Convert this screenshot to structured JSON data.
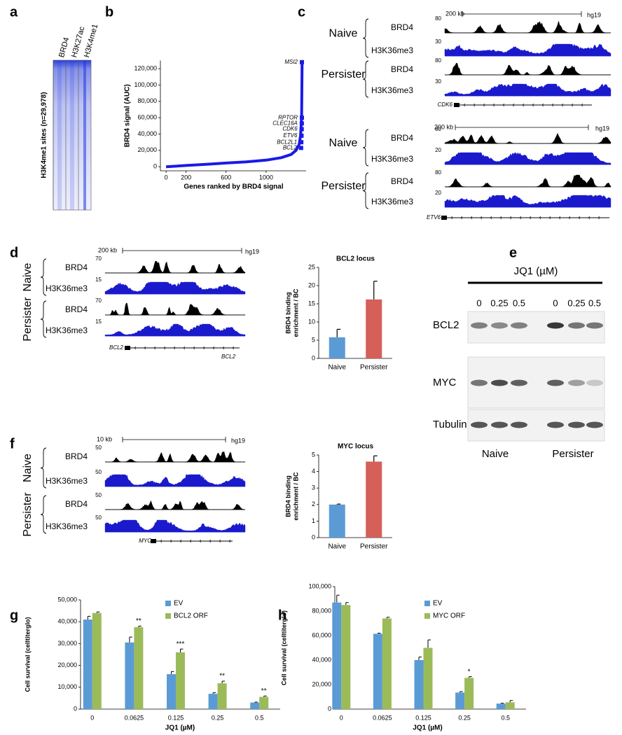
{
  "panel_labels": [
    "a",
    "b",
    "c",
    "d",
    "e",
    "f",
    "g",
    "h"
  ],
  "heatmap": {
    "columns": [
      "BRD4",
      "H3K27ac",
      "H3K4me1"
    ],
    "ylabel": "H3K4me1 sites (n=29,978)",
    "color": "#2236d8"
  },
  "genome_tracks": [
    {
      "scale": "200 kb",
      "genome": "hg19",
      "genes": [
        "CDK6"
      ],
      "groups": [
        {
          "name": "Naive",
          "tracks": [
            {
              "name": "BRD4",
              "max": 80,
              "color": "#000000"
            },
            {
              "name": "H3K36me3",
              "max": 30,
              "color": "#1a1acc"
            }
          ]
        },
        {
          "name": "Persister",
          "tracks": [
            {
              "name": "BRD4",
              "max": 80,
              "color": "#000000"
            },
            {
              "name": "H3K36me3",
              "max": 30,
              "color": "#1a1acc"
            }
          ]
        }
      ]
    },
    {
      "scale": "200 kb",
      "genome": "hg19",
      "genes": [
        "ETV6"
      ],
      "groups": [
        {
          "name": "Naive",
          "tracks": [
            {
              "name": "BRD4",
              "max": 80,
              "color": "#000000"
            },
            {
              "name": "H3K36me3",
              "max": 20,
              "color": "#1a1acc"
            }
          ]
        },
        {
          "name": "Persister",
          "tracks": [
            {
              "name": "BRD4",
              "max": 80,
              "color": "#000000"
            },
            {
              "name": "H3K36me3",
              "max": 20,
              "color": "#1a1acc"
            }
          ]
        }
      ]
    },
    {
      "scale": "200 kb",
      "genome": "hg19",
      "genes": [
        "BCL2",
        "BCL2"
      ],
      "groups": [
        {
          "name": "Naive",
          "tracks": [
            {
              "name": "BRD4",
              "max": 70,
              "color": "#000000"
            },
            {
              "name": "H3K36me3",
              "max": 15,
              "color": "#1a1acc"
            }
          ]
        },
        {
          "name": "Persister",
          "tracks": [
            {
              "name": "BRD4",
              "max": 70,
              "color": "#000000"
            },
            {
              "name": "H3K36me3",
              "max": 15,
              "color": "#1a1acc"
            }
          ]
        }
      ]
    },
    {
      "scale": "10 kb",
      "genome": "hg19",
      "genes": [
        "MYC"
      ],
      "groups": [
        {
          "name": "Naive",
          "tracks": [
            {
              "name": "BRD4",
              "max": 50,
              "color": "#000000"
            },
            {
              "name": "H3K36me3",
              "max": 50,
              "color": "#1a1acc"
            }
          ]
        },
        {
          "name": "Persister",
          "tracks": [
            {
              "name": "BRD4",
              "max": 50,
              "color": "#000000"
            },
            {
              "name": "H3K36me3",
              "max": 50,
              "color": "#1a1acc"
            }
          ]
        }
      ]
    }
  ],
  "western": {
    "title": "JQ1 (µM)",
    "doses": [
      "0",
      "0.25",
      "0.5",
      "0",
      "0.25",
      "0.5"
    ],
    "proteins": [
      "BCL2",
      "MYC",
      "Tubulin"
    ],
    "groups": [
      "Naive",
      "Persister"
    ]
  },
  "chart_data": [
    {
      "type": "line",
      "ylabel": "BRD4 signal (AUC)",
      "xlabel": "Genes ranked by BRD4 signal",
      "x": [
        0,
        200,
        400,
        600,
        800,
        1000,
        1150,
        1250,
        1300,
        1330,
        1345,
        1355,
        1360
      ],
      "values": [
        0,
        1500,
        3000,
        4500,
        6000,
        8000,
        11000,
        15000,
        20000,
        27000,
        38000,
        60000,
        128000
      ],
      "color": "#1a1ae6",
      "xlim": [
        -50,
        1400
      ],
      "ylim": [
        -5000,
        130000
      ],
      "xticks": [
        0,
        200,
        600,
        1000
      ],
      "yticks": [
        0,
        {
          "value": 20000,
          "label": "20,000"
        },
        {
          "value": 40000,
          "label": "40,000"
        },
        {
          "value": 60000,
          "label": "60,000"
        },
        {
          "value": 80000,
          "label": "80,000"
        },
        {
          "value": 100000,
          "label": "100,000"
        },
        {
          "value": 120000,
          "label": "120,000"
        }
      ],
      "annotations": [
        {
          "text": "MSI2",
          "x": 1358,
          "y": 128000
        },
        {
          "text": "RPTOR",
          "x": 1358,
          "y": 60000
        },
        {
          "text": "CLEC16A",
          "x": 1357,
          "y": 53000
        },
        {
          "text": "CDK6",
          "x": 1356,
          "y": 46000
        },
        {
          "text": "ETV6",
          "x": 1354,
          "y": 38000
        },
        {
          "text": "BCL2L1",
          "x": 1352,
          "y": 30000
        },
        {
          "text": "BCL2",
          "x": 1350,
          "y": 23000
        }
      ]
    },
    {
      "type": "bar",
      "title": "BCL2 locus",
      "ylabel": [
        "BRD4 binding",
        "enrichment / BC"
      ],
      "categories": [
        "Naive",
        "Persister"
      ],
      "values": [
        5.8,
        16.2
      ],
      "errors": [
        2.2,
        5.0
      ],
      "colors": [
        "#5b9bd5",
        "#d55f59"
      ],
      "ylim": [
        0,
        25
      ],
      "yticks": [
        0,
        5,
        10,
        15,
        20,
        25
      ]
    },
    {
      "type": "bar",
      "title": "MYC locus",
      "ylabel": [
        "BRD4 binding",
        "enrichment / BC"
      ],
      "categories": [
        "Naive",
        "Persister"
      ],
      "values": [
        2.0,
        4.6
      ],
      "errors": [
        0.03,
        0.35
      ],
      "colors": [
        "#5b9bd5",
        "#d55f59"
      ],
      "ylim": [
        0,
        5
      ],
      "yticks": [
        0,
        1,
        2,
        3,
        4,
        5
      ]
    },
    {
      "type": "grouped-bar",
      "xlabel": "JQ1 (µM)",
      "ylabel": "Cell survival (celltiterglo)",
      "categories": [
        "0",
        "0.0625",
        "0.125",
        "0.25",
        "0.5"
      ],
      "series": [
        {
          "name": "EV",
          "color": "#5b9bd5",
          "values": [
            41000,
            30500,
            16000,
            7000,
            3000
          ],
          "errors": [
            1500,
            2500,
            1200,
            500,
            200
          ]
        },
        {
          "name": "BCL2 ORF",
          "color": "#9bbb59",
          "values": [
            44000,
            37500,
            26000,
            11800,
            5600
          ],
          "errors": [
            500,
            500,
            1500,
            1000,
            400
          ]
        }
      ],
      "significance": [
        null,
        "**",
        "***",
        "**",
        "**"
      ],
      "ylim": [
        0,
        50000
      ],
      "yticks": [
        0,
        {
          "value": 10000,
          "label": "10,000"
        },
        {
          "value": 20000,
          "label": "20,000"
        },
        {
          "value": 30000,
          "label": "30,000"
        },
        {
          "value": 40000,
          "label": "40,000"
        },
        {
          "value": 50000,
          "label": "50,000"
        }
      ]
    },
    {
      "type": "grouped-bar",
      "xlabel": "JQ1 (µM)",
      "ylabel": "Cell survival (celltiterglo)",
      "categories": [
        "0",
        "0.0625",
        "0.125",
        "0.25",
        "0.5"
      ],
      "series": [
        {
          "name": "EV",
          "color": "#5b9bd5",
          "values": [
            87000,
            61500,
            40000,
            13500,
            4500
          ],
          "errors": [
            6000,
            500,
            2500,
            800,
            300
          ]
        },
        {
          "name": "MYC ORF",
          "color": "#9bbb59",
          "values": [
            85000,
            74000,
            50000,
            25500,
            5500
          ],
          "errors": [
            2000,
            1000,
            6500,
            1000,
            1500
          ]
        }
      ],
      "significance": [
        null,
        null,
        null,
        "*",
        null
      ],
      "ylim": [
        0,
        100000
      ],
      "yticks": [
        0,
        {
          "value": 20000,
          "label": "20,000"
        },
        {
          "value": 40000,
          "label": "40,000"
        },
        {
          "value": 60000,
          "label": "60,000"
        },
        {
          "value": 80000,
          "label": "80,000"
        },
        {
          "value": 100000,
          "label": "100,000"
        }
      ]
    }
  ]
}
